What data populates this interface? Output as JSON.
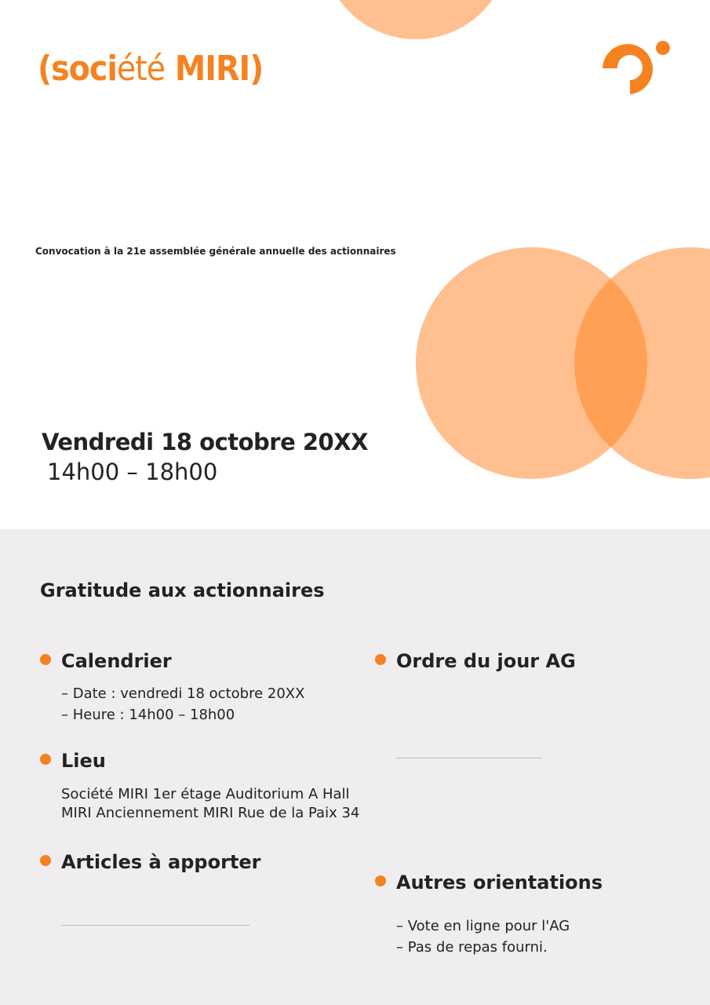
{
  "brand": {
    "open": "(soci",
    "accent": "été",
    "name": " MIRI)",
    "color": "#f58220"
  },
  "subtitle": "Convocation à la 21e assemblée générale annuelle des actionnaires",
  "event": {
    "date": "Vendredi 18 octobre 20XX",
    "time": "14h00 – 18h00"
  },
  "section_title": "Gratitude aux actionnaires",
  "sections": {
    "calendrier": {
      "title": "Calendrier",
      "lines": [
        "– Date : vendredi 18 octobre 20XX",
        "– Heure : 14h00 – 18h00"
      ]
    },
    "lieu": {
      "title": "Lieu",
      "lines": [
        "Société MIRI 1er étage Auditorium A Hall",
        "MIRI Anciennement MIRI Rue de la Paix 34"
      ]
    },
    "articles": {
      "title": "Articles à apporter"
    },
    "ordre": {
      "title": "Ordre du jour AG"
    },
    "autres": {
      "title": "Autres orientations",
      "lines": [
        "– Vote en ligne pour l'AG",
        "– Pas de repas fourni."
      ]
    }
  },
  "colors": {
    "accent": "#f58220",
    "circle": "#ffbf8e",
    "lower_bg": "#efedef"
  }
}
